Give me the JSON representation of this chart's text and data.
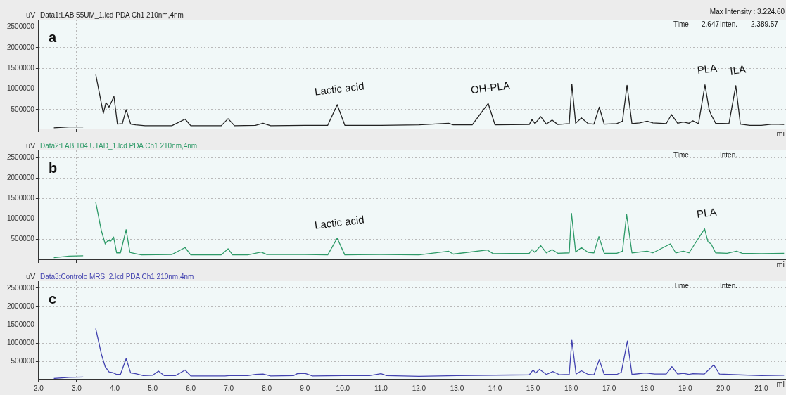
{
  "chart_data": [
    {
      "type": "line",
      "xlabel": "mi",
      "ylabel": "uV",
      "xlim": [
        2,
        21.65
      ],
      "ylim": [
        40000,
        2680000
      ],
      "tick_labels": "y",
      "grid": true,
      "legend": false,
      "marker": "none",
      "line_style": "solid",
      "xticks": [
        {
          "value": 2,
          "label": null
        },
        {
          "value": 3,
          "label": null
        },
        {
          "value": 4,
          "label": null
        },
        {
          "value": 5,
          "label": null
        },
        {
          "value": 6,
          "label": null
        },
        {
          "value": 7,
          "label": null
        },
        {
          "value": 8,
          "label": null
        },
        {
          "value": 9,
          "label": null
        },
        {
          "value": 10,
          "label": null
        },
        {
          "value": 11,
          "label": null
        },
        {
          "value": 12,
          "label": null
        },
        {
          "value": 13,
          "label": null
        },
        {
          "value": 14,
          "label": null
        },
        {
          "value": 15,
          "label": null
        },
        {
          "value": 16,
          "label": null
        },
        {
          "value": 17,
          "label": null
        },
        {
          "value": 18,
          "label": null
        },
        {
          "value": 19,
          "label": null
        },
        {
          "value": 20,
          "label": null
        },
        {
          "value": 21,
          "label": null
        }
      ],
      "yticks": [
        500000,
        1000000,
        1500000,
        2000000,
        2500000
      ],
      "annotations": [
        "Data1:LAB 55UM_1.lcd PDA Ch1 210nm,4nm",
        "a",
        "Max Intensity : 3.224.60",
        "Time",
        "2.647",
        "Inten.",
        "2.389.57",
        {
          "text": "Lactic acid",
          "x": 9.85,
          "y": 620000
        },
        {
          "text": "OH-PLA",
          "x": 13.82,
          "y": 650000
        },
        {
          "text": "PLA",
          "x": 19.52,
          "y": 1100000
        },
        {
          "text": "ILA",
          "x": 20.33,
          "y": 1080000
        }
      ],
      "series": [
        {
          "color": "#222222",
          "x": [
            2.4,
            2.8,
            3.17,
            3.2,
            3.38,
            3.5,
            3.7,
            3.77,
            3.85,
            3.98,
            4.07,
            4.2,
            4.3,
            4.42,
            4.55,
            4.8,
            5.5,
            5.85,
            6.0,
            6.8,
            6.98,
            7.15,
            7.7,
            7.9,
            8.1,
            9.0,
            9.6,
            9.85,
            10.05,
            11.0,
            12.0,
            12.78,
            12.9,
            13.4,
            13.82,
            14.0,
            14.9,
            14.97,
            15.05,
            15.2,
            15.35,
            15.5,
            15.65,
            15.95,
            16.02,
            16.12,
            16.27,
            16.45,
            16.6,
            16.74,
            16.87,
            17.2,
            17.35,
            17.47,
            17.6,
            17.8,
            18.0,
            18.15,
            18.5,
            18.64,
            18.8,
            18.95,
            19.1,
            19.2,
            19.35,
            19.52,
            19.63,
            19.68,
            19.8,
            20.15,
            20.33,
            20.45,
            20.7,
            21.0,
            21.3,
            21.6
          ],
          "values": [
            60000,
            80000,
            80000,
            null,
            null,
            1360000,
            410000,
            670000,
            560000,
            820000,
            150000,
            160000,
            500000,
            150000,
            130000,
            110000,
            110000,
            270000,
            110000,
            110000,
            280000,
            110000,
            120000,
            170000,
            110000,
            120000,
            120000,
            620000,
            120000,
            120000,
            130000,
            170000,
            130000,
            130000,
            650000,
            130000,
            140000,
            260000,
            160000,
            330000,
            150000,
            250000,
            140000,
            160000,
            1120000,
            170000,
            300000,
            160000,
            150000,
            560000,
            150000,
            160000,
            220000,
            1090000,
            160000,
            180000,
            220000,
            180000,
            160000,
            380000,
            170000,
            200000,
            170000,
            230000,
            160000,
            1100000,
            500000,
            380000,
            170000,
            160000,
            1080000,
            150000,
            120000,
            120000,
            150000,
            140000
          ]
        }
      ]
    },
    {
      "type": "line",
      "xlabel": "mi",
      "ylabel": "uV",
      "xlim": [
        2,
        21.65
      ],
      "ylim": [
        0,
        2680000
      ],
      "tick_labels": "y",
      "grid": true,
      "legend": false,
      "marker": "none",
      "line_style": "solid",
      "xticks": [
        {
          "value": 2,
          "label": null
        },
        {
          "value": 3,
          "label": null
        },
        {
          "value": 4,
          "label": null
        },
        {
          "value": 5,
          "label": null
        },
        {
          "value": 6,
          "label": null
        },
        {
          "value": 7,
          "label": null
        },
        {
          "value": 8,
          "label": null
        },
        {
          "value": 9,
          "label": null
        },
        {
          "value": 10,
          "label": null
        },
        {
          "value": 11,
          "label": null
        },
        {
          "value": 12,
          "label": null
        },
        {
          "value": 13,
          "label": null
        },
        {
          "value": 14,
          "label": null
        },
        {
          "value": 15,
          "label": null
        },
        {
          "value": 16,
          "label": null
        },
        {
          "value": 17,
          "label": null
        },
        {
          "value": 18,
          "label": null
        },
        {
          "value": 19,
          "label": null
        },
        {
          "value": 20,
          "label": null
        },
        {
          "value": 21,
          "label": null
        }
      ],
      "yticks": [
        500000,
        1000000,
        1500000,
        2000000,
        2500000
      ],
      "annotations": [
        "Data2:LAB 104 UTAD_1.lcd PDA Ch1 210nm,4nm",
        "b",
        "Time",
        "Inten.",
        {
          "text": "Lactic acid",
          "x": 9.85,
          "y": 520000
        },
        {
          "text": "PLA",
          "x": 19.51,
          "y": 750000
        }
      ],
      "series": [
        {
          "color": "#2e9a68",
          "x": [
            2.4,
            2.8,
            3.17,
            3.19,
            3.38,
            3.5,
            3.65,
            3.75,
            3.82,
            3.9,
            3.97,
            4.05,
            4.15,
            4.3,
            4.4,
            4.5,
            4.7,
            5.5,
            5.85,
            6.0,
            6.8,
            6.98,
            7.1,
            7.5,
            7.85,
            8.0,
            9.0,
            9.6,
            9.85,
            10.05,
            11.0,
            12.0,
            12.78,
            12.9,
            13.8,
            13.95,
            14.9,
            14.97,
            15.05,
            15.2,
            15.35,
            15.5,
            15.65,
            15.95,
            16.01,
            16.12,
            16.27,
            16.45,
            16.6,
            16.73,
            16.87,
            17.2,
            17.35,
            17.46,
            17.6,
            18.0,
            18.15,
            18.61,
            18.75,
            18.95,
            19.1,
            19.51,
            19.6,
            19.68,
            19.8,
            20.1,
            20.35,
            20.5,
            21.0,
            21.6
          ],
          "values": [
            40000,
            80000,
            90000,
            null,
            null,
            1410000,
            700000,
            380000,
            460000,
            450000,
            550000,
            160000,
            160000,
            730000,
            170000,
            150000,
            110000,
            120000,
            290000,
            110000,
            110000,
            260000,
            110000,
            110000,
            180000,
            120000,
            120000,
            110000,
            520000,
            110000,
            120000,
            110000,
            200000,
            130000,
            230000,
            140000,
            150000,
            240000,
            170000,
            340000,
            160000,
            240000,
            150000,
            160000,
            1130000,
            180000,
            290000,
            170000,
            160000,
            560000,
            150000,
            150000,
            200000,
            1100000,
            160000,
            200000,
            160000,
            380000,
            160000,
            200000,
            160000,
            750000,
            430000,
            380000,
            160000,
            150000,
            200000,
            150000,
            140000,
            150000
          ]
        }
      ]
    },
    {
      "type": "line",
      "xlabel": "mi",
      "ylabel": "uV",
      "xlim": [
        2,
        21.65
      ],
      "ylim": [
        30000,
        2690000
      ],
      "grid": true,
      "legend": false,
      "marker": "none",
      "line_style": "solid",
      "xticks": [
        {
          "value": 2,
          "label": "2.0"
        },
        {
          "value": 3,
          "label": "3.0"
        },
        {
          "value": 4,
          "label": "4.0"
        },
        {
          "value": 5,
          "label": "5.0"
        },
        {
          "value": 6,
          "label": "6.0"
        },
        {
          "value": 7,
          "label": "7.0"
        },
        {
          "value": 8,
          "label": "8.0"
        },
        {
          "value": 9,
          "label": "9.0"
        },
        {
          "value": 10,
          "label": "10.0"
        },
        {
          "value": 11,
          "label": "11.0"
        },
        {
          "value": 12,
          "label": "12.0"
        },
        {
          "value": 13,
          "label": "13.0"
        },
        {
          "value": 14,
          "label": "14.0"
        },
        {
          "value": 15,
          "label": "15.0"
        },
        {
          "value": 16,
          "label": "16.0"
        },
        {
          "value": 17,
          "label": "17.0"
        },
        {
          "value": 18,
          "label": "18.0"
        },
        {
          "value": 19,
          "label": "19.0"
        },
        {
          "value": 20,
          "label": "20.0"
        },
        {
          "value": 21,
          "label": "21.0"
        }
      ],
      "yticks": [
        500000,
        1000000,
        1500000,
        2000000,
        2500000
      ],
      "annotations": [
        "Data3:Controlo MRS_2.lcd PDA Ch1 210nm,4nm",
        "c",
        "Time",
        "Inten."
      ],
      "series": [
        {
          "color": "#4343b0",
          "x": [
            2.4,
            2.8,
            3.17,
            3.2,
            3.38,
            3.5,
            3.65,
            3.75,
            3.85,
            3.95,
            4.05,
            4.15,
            4.3,
            4.42,
            4.55,
            4.75,
            5.0,
            5.15,
            5.3,
            5.6,
            5.85,
            6.0,
            6.9,
            7.0,
            7.5,
            7.7,
            7.9,
            8.1,
            8.7,
            8.8,
            9.0,
            9.2,
            10.0,
            10.7,
            11.0,
            11.15,
            11.6,
            12.0,
            13.0,
            14.0,
            14.9,
            15.0,
            15.07,
            15.17,
            15.35,
            15.52,
            15.7,
            15.95,
            16.02,
            16.13,
            16.27,
            16.45,
            16.6,
            16.74,
            16.87,
            17.2,
            17.32,
            17.48,
            17.6,
            17.95,
            18.2,
            18.5,
            18.65,
            18.8,
            18.95,
            19.1,
            19.2,
            19.5,
            19.75,
            19.9,
            20.4,
            21.0,
            21.6
          ],
          "values": [
            40000,
            70000,
            80000,
            null,
            null,
            1400000,
            700000,
            360000,
            220000,
            200000,
            150000,
            150000,
            580000,
            190000,
            170000,
            120000,
            130000,
            240000,
            120000,
            120000,
            270000,
            110000,
            110000,
            120000,
            120000,
            150000,
            160000,
            110000,
            120000,
            170000,
            180000,
            110000,
            120000,
            120000,
            170000,
            120000,
            110000,
            100000,
            120000,
            130000,
            140000,
            270000,
            190000,
            290000,
            150000,
            230000,
            140000,
            150000,
            1080000,
            160000,
            250000,
            150000,
            140000,
            550000,
            150000,
            150000,
            210000,
            1060000,
            150000,
            190000,
            160000,
            160000,
            360000,
            160000,
            180000,
            150000,
            170000,
            160000,
            410000,
            160000,
            140000,
            120000,
            130000
          ]
        }
      ]
    }
  ]
}
